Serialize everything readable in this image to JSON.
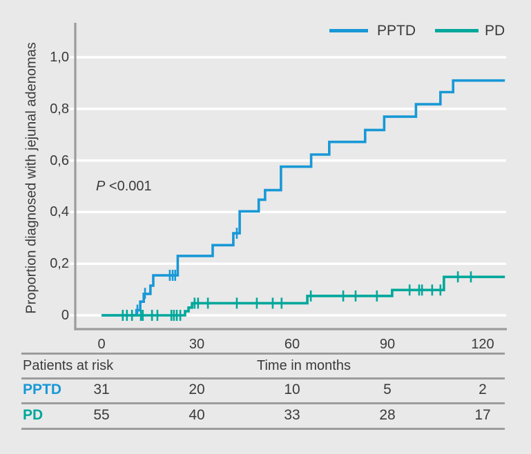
{
  "colors": {
    "background": "#e9e9e9",
    "grid": "#ffffff",
    "axis": "#9c9c9c",
    "text": "#3a3a3a",
    "pptd_blue": "#1898d6",
    "pd_teal": "#00a79b"
  },
  "chart_data": {
    "type": "line",
    "subtype": "kaplan-meier-step",
    "title": "",
    "xlabel": "Time in months",
    "ylabel": "Proportion diagnosed with jejunal adenomas",
    "xlim": [
      0,
      127
    ],
    "ylim": [
      0,
      1.05
    ],
    "grid": "horizontal white gridlines on gray background",
    "legend_position": "top-right",
    "annotation": {
      "symbol": "P",
      "text": " <0.001"
    },
    "x_ticks": [
      {
        "label": "0",
        "value": 0
      },
      {
        "label": "30",
        "value": 30
      },
      {
        "label": "60",
        "value": 60
      },
      {
        "label": "90",
        "value": 90
      },
      {
        "label": "120",
        "value": 120
      }
    ],
    "y_ticks": [
      {
        "label": "0",
        "value": 0
      },
      {
        "label": "0,2",
        "value": 0.2
      },
      {
        "label": "0,4",
        "value": 0.4
      },
      {
        "label": "0,6",
        "value": 0.6
      },
      {
        "label": "0,8",
        "value": 0.8
      },
      {
        "label": "1,0",
        "value": 1.0
      }
    ],
    "series": [
      {
        "name": "PPTD",
        "color": "#1898d6",
        "end_time": 127,
        "steps": [
          [
            0,
            0
          ],
          [
            11,
            0.02
          ],
          [
            12.2,
            0.053
          ],
          [
            13.3,
            0.083
          ],
          [
            15.4,
            0.115
          ],
          [
            16.3,
            0.155
          ],
          [
            24,
            0.23
          ],
          [
            35,
            0.272
          ],
          [
            41.5,
            0.318
          ],
          [
            43.5,
            0.403
          ],
          [
            49.5,
            0.448
          ],
          [
            51.5,
            0.485
          ],
          [
            56.5,
            0.576
          ],
          [
            66,
            0.623
          ],
          [
            71.7,
            0.672
          ],
          [
            83,
            0.718
          ],
          [
            89,
            0.77
          ],
          [
            99,
            0.818
          ],
          [
            106.7,
            0.865
          ],
          [
            110.7,
            0.91
          ]
        ],
        "censors": [
          [
            11.3,
            0.02
          ],
          [
            13.7,
            0.085
          ],
          [
            21.5,
            0.155
          ],
          [
            22.4,
            0.155
          ],
          [
            23.2,
            0.155
          ],
          [
            42.6,
            0.318
          ]
        ]
      },
      {
        "name": "PD",
        "color": "#00a79b",
        "end_time": 127,
        "steps": [
          [
            0,
            0
          ],
          [
            26.3,
            0.016
          ],
          [
            27.4,
            0.03
          ],
          [
            28.5,
            0.047
          ],
          [
            64.8,
            0.075
          ],
          [
            91.5,
            0.098
          ],
          [
            107.8,
            0.149
          ]
        ],
        "censors": [
          [
            6.7,
            0
          ],
          [
            8,
            0
          ],
          [
            9.6,
            0
          ],
          [
            12.4,
            0
          ],
          [
            13,
            0
          ],
          [
            15.9,
            0
          ],
          [
            17.6,
            0
          ],
          [
            22,
            0
          ],
          [
            22.8,
            0
          ],
          [
            23.7,
            0
          ],
          [
            24.8,
            0
          ],
          [
            29.3,
            0.047
          ],
          [
            30.4,
            0.047
          ],
          [
            33.5,
            0.047
          ],
          [
            42.6,
            0.047
          ],
          [
            48.9,
            0.047
          ],
          [
            53.9,
            0.047
          ],
          [
            56.7,
            0.047
          ],
          [
            65.9,
            0.075
          ],
          [
            76.1,
            0.075
          ],
          [
            80,
            0.075
          ],
          [
            86.7,
            0.075
          ],
          [
            97,
            0.098
          ],
          [
            100,
            0.098
          ],
          [
            100.9,
            0.098
          ],
          [
            104.1,
            0.098
          ],
          [
            106.7,
            0.098
          ],
          [
            112.2,
            0.149
          ],
          [
            116.3,
            0.149
          ]
        ]
      }
    ]
  },
  "risk_table": {
    "title": "Patients at risk",
    "rows": [
      {
        "label": "PPTD",
        "color": "#1898d6",
        "values": [
          "31",
          "20",
          "10",
          "5",
          "2"
        ]
      },
      {
        "label": "PD",
        "color": "#00a79b",
        "values": [
          "55",
          "40",
          "33",
          "28",
          "17"
        ]
      }
    ]
  }
}
